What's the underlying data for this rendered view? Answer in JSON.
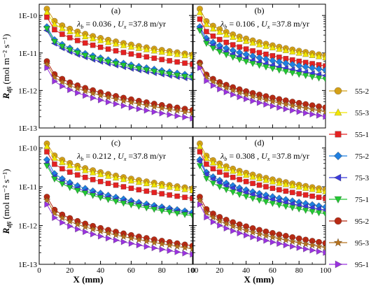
{
  "chart_data": {
    "type": "scatter",
    "layout": "2x2 grid of panels sharing axes",
    "xlabel": "X (mm)",
    "ylabel": "R",
    "ylabel_subscript": "dfi",
    "ylabel_unit": "(mol m⁻² s⁻¹)",
    "x_ticks": [
      "0",
      "20",
      "40",
      "60",
      "80",
      "100"
    ],
    "xlim": [
      0,
      100
    ],
    "y_scale": "log",
    "ylim": [
      1e-13,
      2e-10
    ],
    "y_ticks": [
      "1E-13",
      "1E-12",
      "1E-11",
      "1E-10"
    ],
    "y_tick_values": [
      1e-13,
      1e-12,
      1e-11,
      1e-10
    ],
    "lambda_symbol": "λ",
    "lambda_sub": "b",
    "ux_symbol": "U",
    "ux_sub": "x",
    "ux_value": "=37.8 m/yr",
    "legend_position": "right, outside panels",
    "panels": [
      {
        "label": "(a)",
        "lambda": "= 0.036 ,"
      },
      {
        "label": "(b)",
        "lambda": "= 0.106 ,"
      },
      {
        "label": "(c)",
        "lambda": "= 0.212 ,"
      },
      {
        "label": "(d)",
        "lambda": "= 0.308 ,"
      }
    ],
    "x": [
      5,
      10,
      15,
      20,
      25,
      30,
      35,
      40,
      45,
      50,
      55,
      60,
      65,
      70,
      75,
      80,
      85,
      90,
      95,
      100
    ],
    "series": [
      {
        "name": "55-2",
        "color": "#d4a017",
        "marker": "circle",
        "start": [
          1.5e-10,
          1.5e-10,
          1.3e-10,
          1.3e-10
        ],
        "end": [
          9e-12,
          8.5e-12,
          9e-12,
          8.5e-12
        ]
      },
      {
        "name": "55-3",
        "color": "#f2e600",
        "marker": "triangle-up",
        "start": [
          1.2e-10,
          1.2e-10,
          1.1e-10,
          1.1e-10
        ],
        "end": [
          8e-12,
          7.5e-12,
          8e-12,
          7.5e-12
        ]
      },
      {
        "name": "55-1",
        "color": "#e52222",
        "marker": "square",
        "start": [
          9e-11,
          8e-11,
          8e-11,
          8e-11
        ],
        "end": [
          5e-12,
          4.5e-12,
          5e-12,
          5e-12
        ]
      },
      {
        "name": "75-2",
        "color": "#1f7fe0",
        "marker": "diamond",
        "start": [
          5e-11,
          5e-11,
          5e-11,
          5e-11
        ],
        "end": [
          2.5e-12,
          3.5e-12,
          2.2e-12,
          3e-12
        ]
      },
      {
        "name": "75-3",
        "color": "#3b3bdb",
        "marker": "triangle-left",
        "start": [
          4e-11,
          4.5e-11,
          4e-11,
          4.5e-11
        ],
        "end": [
          2e-12,
          2.5e-12,
          2e-12,
          2.5e-12
        ]
      },
      {
        "name": "75-1",
        "color": "#22c832",
        "marker": "triangle-down",
        "start": [
          4.5e-11,
          4e-11,
          3.5e-11,
          3.5e-11
        ],
        "end": [
          2.2e-12,
          2e-12,
          1.8e-12,
          2e-12
        ]
      },
      {
        "name": "95-2",
        "color": "#b82a14",
        "marker": "circle",
        "start": [
          6e-12,
          5.5e-12,
          5.5e-12,
          5.5e-12
        ],
        "end": [
          3e-13,
          3.5e-13,
          3e-13,
          3.5e-13
        ]
      },
      {
        "name": "95-3",
        "color": "#b8731d",
        "marker": "star",
        "start": [
          5e-12,
          5e-12,
          4.5e-12,
          4.5e-12
        ],
        "end": [
          2.5e-13,
          2.7e-13,
          2.5e-13,
          2.7e-13
        ]
      },
      {
        "name": "95-1",
        "color": "#9a32e0",
        "marker": "triangle-right",
        "start": [
          4e-12,
          4e-12,
          3.5e-12,
          3.5e-12
        ],
        "end": [
          1.8e-13,
          2e-13,
          1.8e-13,
          2e-13
        ]
      }
    ]
  }
}
